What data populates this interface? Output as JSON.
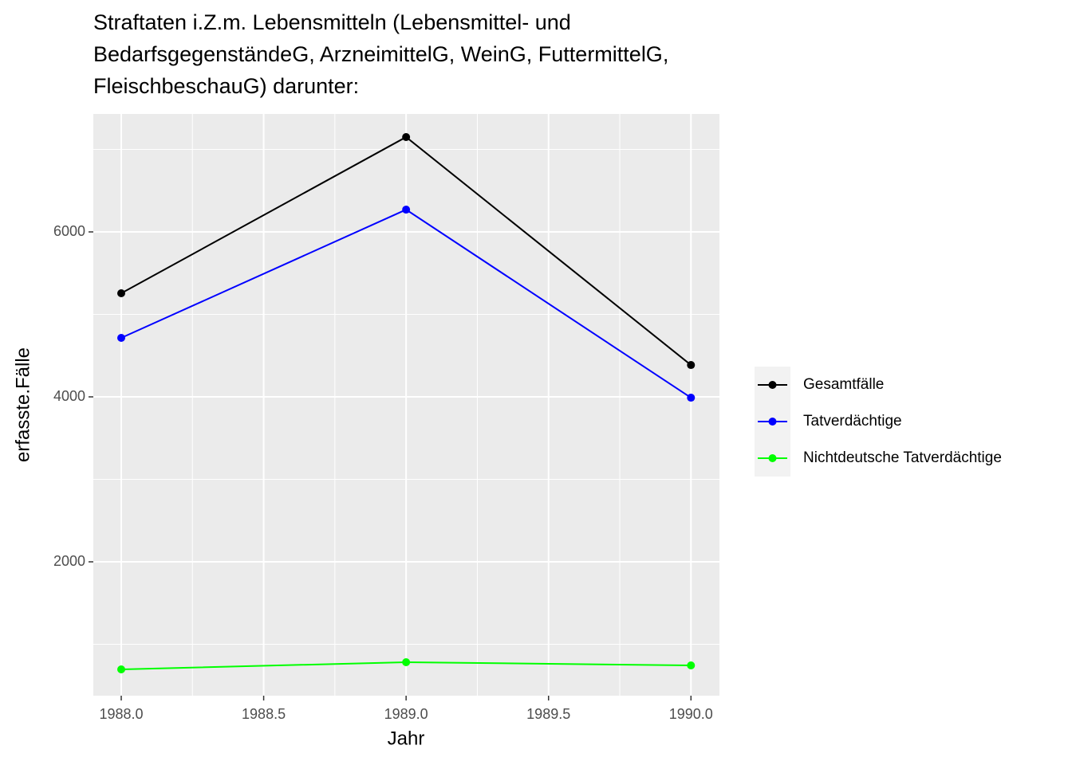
{
  "chart_data": {
    "type": "line",
    "title": "Straftaten i.Z.m. Lebensmitteln (Lebensmittel- und\nBedarfsgegenständeG, ArzneimittelG, WeinG, FuttermittelG,\nFleischbeschauG) darunter:",
    "x_label": "Jahr",
    "y_label": "erfasste.Fälle",
    "x": [
      1988,
      1989,
      1990
    ],
    "series": [
      {
        "name": "Gesamtfälle",
        "color": "#000000",
        "values": [
          5256,
          7150,
          4386
        ]
      },
      {
        "name": "Tatverdächtige",
        "color": "#0000ff",
        "values": [
          4715,
          6270,
          3990
        ]
      },
      {
        "name": "Nichtdeutsche Tatverdächtige",
        "color": "#00ff00",
        "values": [
          696,
          783,
          744
        ]
      }
    ],
    "xlim": [
      1987.902,
      1990.1
    ],
    "xticks": [
      {
        "value": 1988,
        "label": "1988.0"
      },
      {
        "value": 1988.5,
        "label": "1988.5"
      },
      {
        "value": 1989,
        "label": "1989.0"
      },
      {
        "value": 1989.5,
        "label": "1989.5"
      },
      {
        "value": 1990,
        "label": "1990.0"
      }
    ],
    "ylim": [
      377,
      7430
    ],
    "yticks": [
      2000,
      4000,
      6000
    ],
    "grid": true,
    "legend": "right"
  }
}
